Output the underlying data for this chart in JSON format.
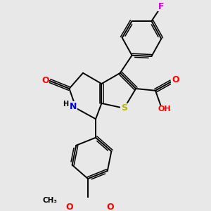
{
  "bg_color": "#e8e8e8",
  "atom_colors": {
    "C": "#000000",
    "N": "#0000cd",
    "O": "#ff0000",
    "S": "#b8b800",
    "F": "#cc00cc",
    "H": "#000000"
  },
  "bond_color": "#000000",
  "fig_size": [
    3.0,
    3.0
  ],
  "dpi": 100
}
